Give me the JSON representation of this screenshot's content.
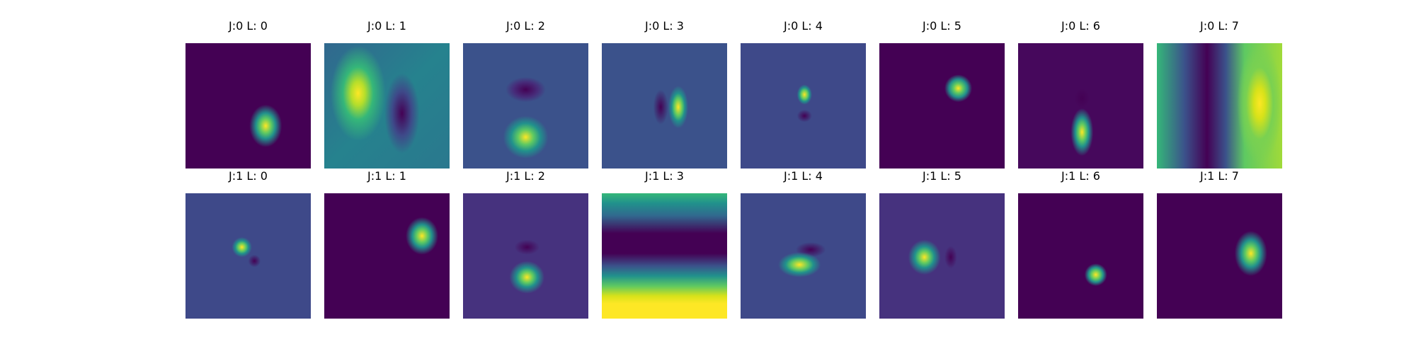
{
  "figure": {
    "colormap": "viridis",
    "colors": {
      "low": "#440154",
      "mid": "#21918c",
      "high": "#fde725",
      "title": "#000000"
    }
  },
  "chart_data": {
    "type": "heatmap",
    "grid": {
      "rows": 2,
      "cols": 8,
      "axes_visible": false
    },
    "panels": [
      {
        "title": "J:0 L: 0",
        "background": "#440154",
        "pattern": "compact positive blob, lower right of center, tilted"
      },
      {
        "title": "J:0 L: 1",
        "background": "#25858e",
        "pattern": "large elongated positive lobe upper left, negative lobe right"
      },
      {
        "title": "J:0 L: 2",
        "background": "#3b528b",
        "pattern": "negative spot above, positive blob below center"
      },
      {
        "title": "J:0 L: 3",
        "background": "#3b528b",
        "pattern": "vertical positive stripe with negative on left"
      },
      {
        "title": "J:0 L: 4",
        "background": "#3e4989",
        "pattern": "small positive spot above negative spot"
      },
      {
        "title": "J:0 L: 5",
        "background": "#440154",
        "pattern": "positive blob upper right"
      },
      {
        "title": "J:0 L: 6",
        "background": "#46085c",
        "pattern": "vertical positive blob below center, negative above"
      },
      {
        "title": "J:0 L: 7",
        "background": "#2ab07f",
        "pattern": "broad vertical bands: positive right, negative left-center"
      },
      {
        "title": "J:1 L: 0",
        "background": "#3e4989",
        "pattern": "positive spot with negative spot lower right"
      },
      {
        "title": "J:1 L: 1",
        "background": "#440154",
        "pattern": "positive blob right of center"
      },
      {
        "title": "J:1 L: 2",
        "background": "#46327e",
        "pattern": "negative spot above positive blob below center"
      },
      {
        "title": "J:1 L: 3",
        "background": "#21918c",
        "pattern": "horizontal bands: dark middle, bright bottom"
      },
      {
        "title": "J:1 L: 4",
        "background": "#3e4989",
        "pattern": "diagonal positive blob with negative above right"
      },
      {
        "title": "J:1 L: 5",
        "background": "#46327e",
        "pattern": "positive blob left of center"
      },
      {
        "title": "J:1 L: 6",
        "background": "#440154",
        "pattern": "small positive blob below center right"
      },
      {
        "title": "J:1 L: 7",
        "background": "#440154",
        "pattern": "positive blob right of center"
      }
    ]
  }
}
